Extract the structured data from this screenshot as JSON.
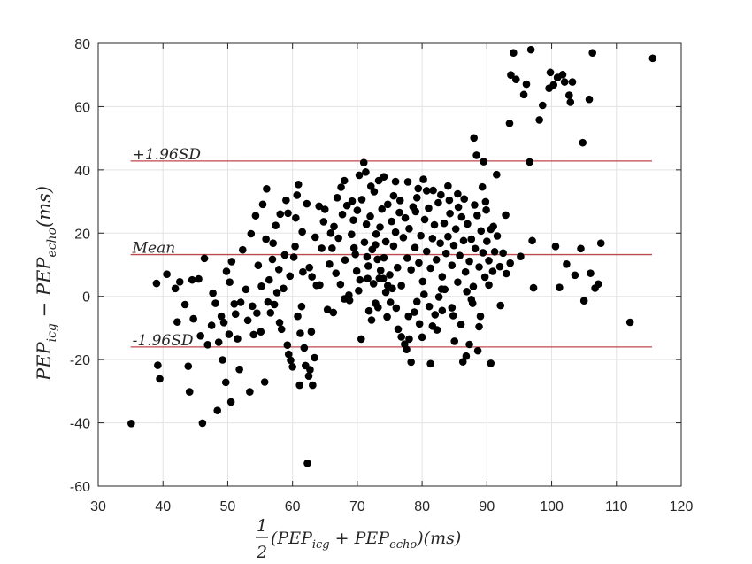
{
  "chart_data": {
    "type": "scatter",
    "title": "",
    "xlabel": {
      "frac_num": "1",
      "frac_den": "2",
      "expr": "(PEP",
      "sub1": "icg",
      "plus": " + PEP",
      "sub2": "echo",
      "tail": ")(ms)"
    },
    "ylabel": {
      "a": "PEP",
      "sub1": "icg",
      "minus": " − PEP",
      "sub2": "echo",
      "tail": "(ms)"
    },
    "xlim": [
      30,
      120
    ],
    "ylim": [
      -60,
      80
    ],
    "xticks": [
      30,
      40,
      50,
      60,
      70,
      80,
      90,
      100,
      110,
      120
    ],
    "yticks": [
      -60,
      -40,
      -20,
      0,
      20,
      40,
      60,
      80
    ],
    "grid": true,
    "marker_color": "#000000",
    "hlines": [
      {
        "label": "+1.96SD",
        "value": 42.8,
        "color": "#c0474d"
      },
      {
        "label": "Mean",
        "value": 13.2,
        "color": "#c0474d"
      },
      {
        "label": "-1.96SD",
        "value": -16.0,
        "color": "#c0474d"
      }
    ],
    "hline_x_range": [
      35,
      115.5
    ],
    "points": [
      [
        35.1,
        -40.2
      ],
      [
        39,
        4.1
      ],
      [
        39.2,
        -21.8
      ],
      [
        39.5,
        -26.1
      ],
      [
        40.6,
        7
      ],
      [
        41.9,
        2.5
      ],
      [
        42.2,
        -8.1
      ],
      [
        42.6,
        4.6
      ],
      [
        43.4,
        -2.6
      ],
      [
        43.9,
        -22.1
      ],
      [
        44.1,
        -30.2
      ],
      [
        44.5,
        5.2
      ],
      [
        44.7,
        -7.1
      ],
      [
        45.5,
        5.5
      ],
      [
        45.8,
        -12.5
      ],
      [
        46.1,
        -40.1
      ],
      [
        46.4,
        12
      ],
      [
        46.9,
        -15.3
      ],
      [
        47.5,
        -9.2
      ],
      [
        47.7,
        1
      ],
      [
        48.1,
        -2.2
      ],
      [
        48.4,
        -36.1
      ],
      [
        48.6,
        -14.5
      ],
      [
        49,
        -6.3
      ],
      [
        49.2,
        -20.1
      ],
      [
        49.4,
        -8.3
      ],
      [
        49.7,
        -27.2
      ],
      [
        49.8,
        7.9
      ],
      [
        50.2,
        -12
      ],
      [
        50.3,
        4.5
      ],
      [
        50.5,
        -33.4
      ],
      [
        50.6,
        11
      ],
      [
        51,
        -2.4
      ],
      [
        51.5,
        -13.4
      ],
      [
        51.8,
        -23.1
      ],
      [
        52,
        -1.9
      ],
      [
        52.3,
        14.7
      ],
      [
        53.1,
        -7.6
      ],
      [
        53.4,
        -30.2
      ],
      [
        53.6,
        19.8
      ],
      [
        54,
        -12.1
      ],
      [
        54.3,
        25.5
      ],
      [
        54.5,
        -5.3
      ],
      [
        55.1,
        -11.2
      ],
      [
        55.4,
        29.1
      ],
      [
        55.7,
        -27.1
      ],
      [
        55.9,
        18.1
      ],
      [
        56,
        34
      ],
      [
        56.4,
        5.2
      ],
      [
        56.9,
        11.7
      ],
      [
        57.2,
        -2.6
      ],
      [
        57.4,
        22.4
      ],
      [
        57.6,
        1.2
      ],
      [
        58.1,
        26
      ],
      [
        58.3,
        -10.4
      ],
      [
        58.6,
        2.5
      ],
      [
        59,
        30.4
      ],
      [
        59.2,
        -15.4
      ],
      [
        59.4,
        -18.3
      ],
      [
        59.7,
        -20.2
      ],
      [
        60,
        -22.3
      ],
      [
        60.2,
        12.4
      ],
      [
        60.5,
        24.8
      ],
      [
        60.7,
        32
      ],
      [
        60.9,
        35.4
      ],
      [
        61.1,
        -28.1
      ],
      [
        61.2,
        -11.7
      ],
      [
        61.4,
        -3.2
      ],
      [
        61.6,
        7.7
      ],
      [
        61.8,
        -16.3
      ],
      [
        62,
        -21.9
      ],
      [
        62.3,
        -52.8
      ],
      [
        62.5,
        -25.2
      ],
      [
        62.7,
        -23.2
      ],
      [
        62.9,
        -11.2
      ],
      [
        63.1,
        -28.1
      ],
      [
        63.4,
        -19.4
      ],
      [
        63.7,
        3.5
      ],
      [
        64.1,
        28.5
      ],
      [
        64.5,
        15.2
      ],
      [
        65.4,
        -4.2
      ],
      [
        65.9,
        20
      ],
      [
        66.3,
        -5.1
      ],
      [
        66.9,
        31.2
      ],
      [
        67.5,
        34.5
      ],
      [
        68,
        36.6
      ],
      [
        68.7,
        0.4
      ],
      [
        69.2,
        30.1
      ],
      [
        69.5,
        15.3
      ],
      [
        69.9,
        8
      ],
      [
        70.3,
        38.3
      ],
      [
        70.6,
        -13.5
      ],
      [
        71,
        42.3
      ],
      [
        71.3,
        39.3
      ],
      [
        71.6,
        5.6
      ],
      [
        71.8,
        -4.6
      ],
      [
        72.2,
        -7.5
      ],
      [
        72.5,
        4
      ],
      [
        72.8,
        -2.2
      ],
      [
        73.1,
        11.7
      ],
      [
        73.4,
        5.7
      ],
      [
        73.6,
        8.2
      ],
      [
        74.1,
        37.8
      ],
      [
        74.4,
        1.3
      ],
      [
        74.7,
        3.4
      ],
      [
        75.1,
        -1.9
      ],
      [
        75.6,
        31.8
      ],
      [
        75.9,
        36.3
      ],
      [
        76.3,
        -10.4
      ],
      [
        76.8,
        -12.8
      ],
      [
        77.3,
        -15.1
      ],
      [
        77.6,
        -16.8
      ],
      [
        78,
        -13.5
      ],
      [
        78.3,
        -20.8
      ],
      [
        78.8,
        -5
      ],
      [
        79.2,
        -1.7
      ],
      [
        79.6,
        -8.7
      ],
      [
        80,
        -12.9
      ],
      [
        80.2,
        37
      ],
      [
        80.7,
        33.4
      ],
      [
        81.3,
        -21.3
      ],
      [
        81.6,
        -9.4
      ],
      [
        82,
        -5.8
      ],
      [
        82.3,
        -10.6
      ],
      [
        82.6,
        -0.2
      ],
      [
        83.1,
        -4.5
      ],
      [
        83.5,
        2.2
      ],
      [
        84,
        34.9
      ],
      [
        84.6,
        -3.6
      ],
      [
        85,
        -14.2
      ],
      [
        85.5,
        32.4
      ],
      [
        86,
        -8.9
      ],
      [
        86.3,
        -20.7
      ],
      [
        86.8,
        -18.9
      ],
      [
        87.3,
        -15.2
      ],
      [
        87.6,
        -1
      ],
      [
        88,
        50.1
      ],
      [
        88.4,
        44.6
      ],
      [
        88.6,
        -17.2
      ],
      [
        88.8,
        -9.6
      ],
      [
        89,
        -6.3
      ],
      [
        89.3,
        34.6
      ],
      [
        89.5,
        42.6
      ],
      [
        89.8,
        29.9
      ],
      [
        90.3,
        3.6
      ],
      [
        90.6,
        -21.2
      ],
      [
        91,
        22.1
      ],
      [
        91.5,
        38.5
      ],
      [
        92.1,
        -2.9
      ],
      [
        92.9,
        25.7
      ],
      [
        93.5,
        54.7
      ],
      [
        93.7,
        70
      ],
      [
        94.1,
        77
      ],
      [
        94.5,
        68.6
      ],
      [
        95.2,
        12.6
      ],
      [
        95.7,
        63.8
      ],
      [
        96.1,
        67.1
      ],
      [
        96.6,
        42.5
      ],
      [
        96.8,
        78
      ],
      [
        97,
        17.6
      ],
      [
        97.2,
        2.7
      ],
      [
        98.1,
        55.8
      ],
      [
        98.6,
        60.4
      ],
      [
        99.6,
        65.8
      ],
      [
        99.8,
        70.8
      ],
      [
        100.3,
        66.9
      ],
      [
        100.6,
        15.8
      ],
      [
        100.9,
        69.2
      ],
      [
        101.2,
        2.8
      ],
      [
        101.7,
        70.1
      ],
      [
        102,
        67.8
      ],
      [
        102.3,
        10.2
      ],
      [
        102.7,
        63.6
      ],
      [
        102.9,
        61.4
      ],
      [
        103.2,
        67.8
      ],
      [
        103.6,
        6.7
      ],
      [
        104.5,
        15.1
      ],
      [
        104.8,
        48.6
      ],
      [
        105,
        -1.4
      ],
      [
        105.8,
        62.3
      ],
      [
        106,
        7.3
      ],
      [
        106.3,
        77
      ],
      [
        106.7,
        2.6
      ],
      [
        107.2,
        3.9
      ],
      [
        107.6,
        16.8
      ],
      [
        112.1,
        -8.2
      ],
      [
        115.6,
        75.3
      ],
      [
        66.1,
        15.2
      ],
      [
        66.4,
        22.1
      ],
      [
        66.7,
        7.3
      ],
      [
        67.1,
        18.4
      ],
      [
        67.4,
        3.8
      ],
      [
        67.7,
        25.9
      ],
      [
        68.1,
        11.5
      ],
      [
        68.4,
        28.7
      ],
      [
        68.8,
        -1.3
      ],
      [
        69.1,
        19.6
      ],
      [
        69.4,
        24.1
      ],
      [
        69.7,
        13.3
      ],
      [
        70,
        27.2
      ],
      [
        70.4,
        5.2
      ],
      [
        70.7,
        30.6
      ],
      [
        71.1,
        17.1
      ],
      [
        71.4,
        22.8
      ],
      [
        71.7,
        9.6
      ],
      [
        72,
        25.3
      ],
      [
        72.3,
        14.8
      ],
      [
        72.6,
        33.1
      ],
      [
        72.9,
        19.7
      ],
      [
        73.2,
        -3.5
      ],
      [
        73.5,
        21.9
      ],
      [
        73.8,
        27.6
      ],
      [
        74.1,
        12.2
      ],
      [
        74.4,
        17.3
      ],
      [
        74.7,
        29.1
      ],
      [
        75,
        6.8
      ],
      [
        75.3,
        23.7
      ],
      [
        75.6,
        15.9
      ],
      [
        75.9,
        20.3
      ],
      [
        76.2,
        9.1
      ],
      [
        76.5,
        26.5
      ],
      [
        76.8,
        3.4
      ],
      [
        77.1,
        18.6
      ],
      [
        77.4,
        24.8
      ],
      [
        77.7,
        12.1
      ],
      [
        78,
        21.4
      ],
      [
        78.3,
        8.4
      ],
      [
        78.6,
        28.3
      ],
      [
        78.9,
        15.4
      ],
      [
        79.2,
        31.2
      ],
      [
        79.5,
        10.6
      ],
      [
        79.8,
        19.2
      ],
      [
        80.1,
        4.7
      ],
      [
        80.4,
        24.3
      ],
      [
        80.7,
        14.2
      ],
      [
        81,
        27.9
      ],
      [
        81.3,
        8.9
      ],
      [
        81.6,
        18.3
      ],
      [
        81.9,
        22.6
      ],
      [
        82.2,
        11.6
      ],
      [
        82.5,
        29.6
      ],
      [
        82.8,
        16.8
      ],
      [
        83.1,
        6.2
      ],
      [
        83.4,
        23.1
      ],
      [
        83.7,
        13.6
      ],
      [
        84,
        18.9
      ],
      [
        84.3,
        26.2
      ],
      [
        84.6,
        9.8
      ],
      [
        84.9,
        16.1
      ],
      [
        85.2,
        21.3
      ],
      [
        85.5,
        4.5
      ],
      [
        85.8,
        12.9
      ],
      [
        86.1,
        25.1
      ],
      [
        86.4,
        17.6
      ],
      [
        86.7,
        7.7
      ],
      [
        87,
        22.9
      ],
      [
        87.3,
        11.1
      ],
      [
        87.6,
        18.1
      ],
      [
        87.9,
        3.1
      ],
      [
        88.2,
        15.1
      ],
      [
        88.5,
        25.6
      ],
      [
        88.8,
        9.3
      ],
      [
        89.1,
        20.7
      ],
      [
        89.4,
        13.8
      ],
      [
        89.7,
        6.1
      ],
      [
        90,
        17.4
      ],
      [
        90.3,
        11.3
      ],
      [
        90.6,
        21.2
      ],
      [
        90.9,
        7.9
      ],
      [
        91.2,
        14.1
      ],
      [
        91.6,
        19.1
      ],
      [
        92,
        9.4
      ],
      [
        92.5,
        13.7
      ],
      [
        93,
        7.2
      ],
      [
        93.6,
        10.5
      ],
      [
        68,
        -0.8
      ],
      [
        70.2,
        1.8
      ],
      [
        71.5,
        12.5
      ],
      [
        72.8,
        16.3
      ],
      [
        74,
        5.6
      ],
      [
        75.4,
        2.5
      ],
      [
        76.6,
        30.3
      ],
      [
        77.9,
        -6.3
      ],
      [
        79,
        26.8
      ],
      [
        80.3,
        0.6
      ],
      [
        81.7,
        33.5
      ],
      [
        83,
        2.3
      ],
      [
        84.2,
        30.4
      ],
      [
        85.6,
        28.2
      ],
      [
        86.9,
        1.5
      ],
      [
        88.1,
        28.9
      ],
      [
        65.7,
        10.2
      ],
      [
        64.8,
        23.6
      ],
      [
        63.5,
        18.7
      ],
      [
        62.6,
        9.1
      ],
      [
        61.5,
        20.4
      ],
      [
        60.4,
        15.8
      ],
      [
        59.6,
        6.4
      ],
      [
        58.8,
        13.1
      ],
      [
        57.9,
        8.5
      ],
      [
        57,
        16.8
      ],
      [
        56.2,
        -1.8
      ],
      [
        55.2,
        3.2
      ],
      [
        54.7,
        9.8
      ],
      [
        53.8,
        -3.1
      ],
      [
        52.8,
        2.2
      ],
      [
        51.2,
        -5.6
      ],
      [
        64.2,
        3.6
      ],
      [
        63,
        6.2
      ],
      [
        65,
        27.5
      ],
      [
        62.2,
        29.3
      ],
      [
        60.8,
        -6.3
      ],
      [
        59.3,
        26.3
      ],
      [
        58,
        -8.3
      ],
      [
        56.6,
        -5.2
      ],
      [
        73.3,
        36.6
      ],
      [
        72.1,
        34.8
      ],
      [
        74.6,
        -6.5
      ],
      [
        76,
        -3.7
      ],
      [
        77.8,
        36.2
      ],
      [
        79.4,
        34.1
      ],
      [
        81.1,
        -3.2
      ],
      [
        82.9,
        32.1
      ],
      [
        84.8,
        -6.1
      ],
      [
        86.5,
        30.8
      ],
      [
        87.8,
        -2.2
      ],
      [
        89.9,
        27.3
      ]
    ]
  }
}
